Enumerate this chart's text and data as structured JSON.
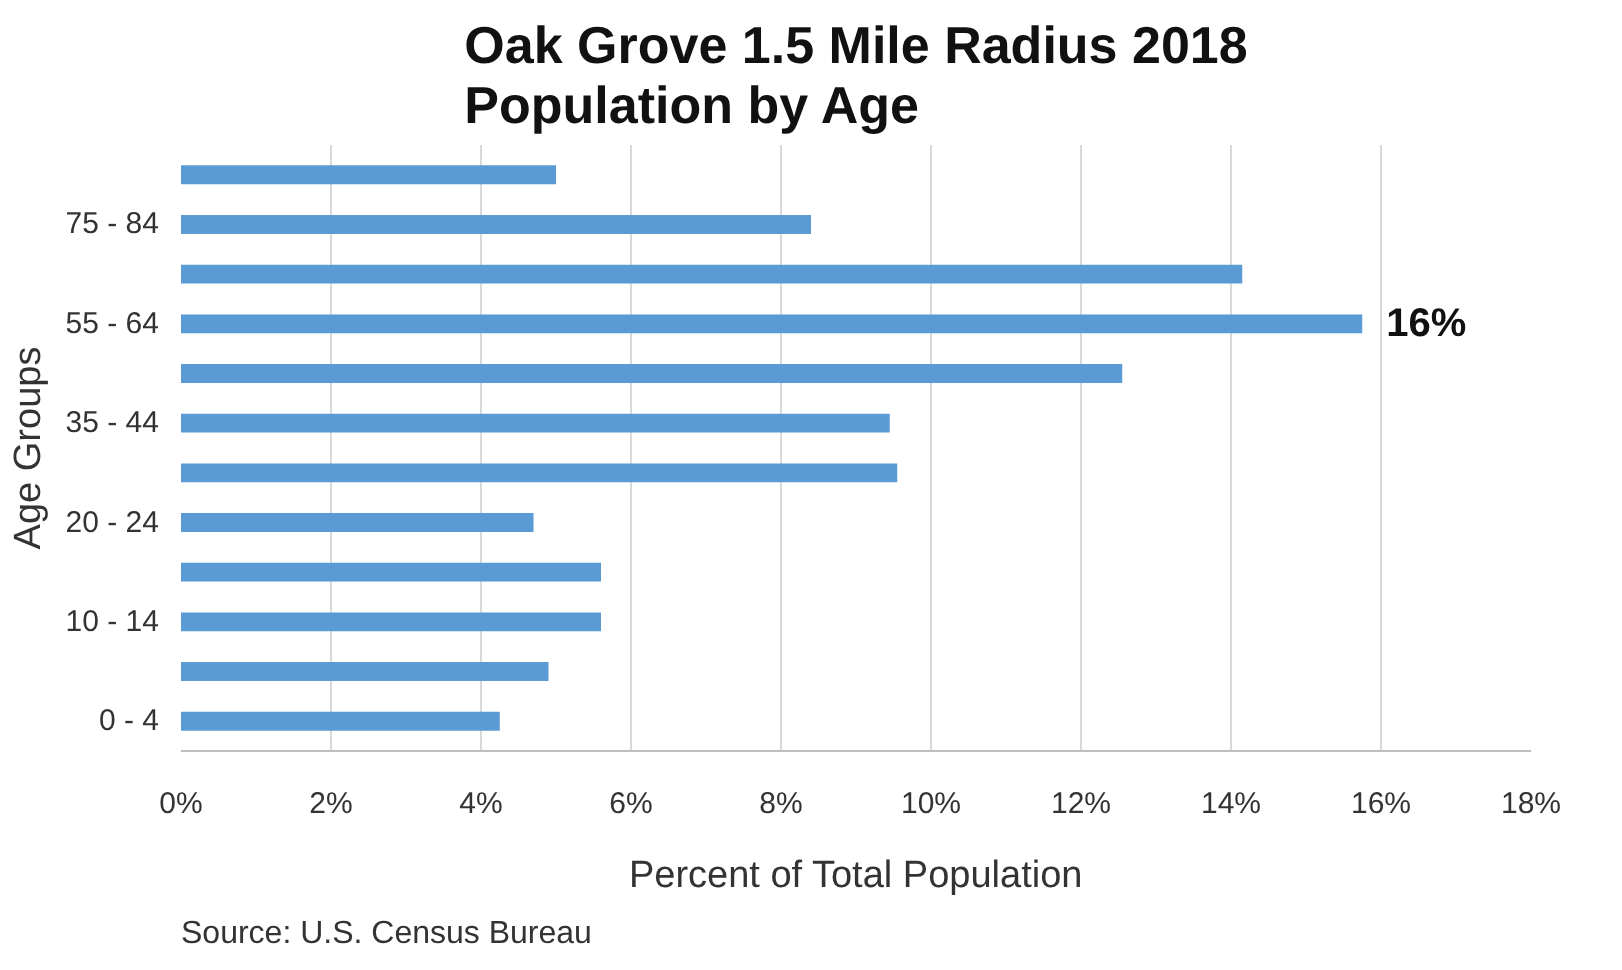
{
  "chart_data": {
    "type": "bar",
    "orientation": "horizontal",
    "title": "Oak Grove 1.5 Mile Radius 2018\nPopulation by Age",
    "xlabel": "Percent of Total Population",
    "ylabel": "Age Groups",
    "categories": [
      null,
      "75 - 84",
      null,
      "55 - 64",
      null,
      "35 - 44",
      null,
      "20 - 24",
      null,
      "10 - 14",
      null,
      "0 - 4"
    ],
    "values": [
      5.0,
      8.4,
      14.15,
      15.75,
      12.55,
      9.45,
      9.55,
      4.7,
      5.6,
      5.6,
      4.9,
      4.25
    ],
    "color": "#5b9bd5",
    "xlim": [
      0,
      18
    ],
    "xticks": [
      {
        "value": 0,
        "label": "0%"
      },
      {
        "value": 2,
        "label": "2%"
      },
      {
        "value": 4,
        "label": "4%"
      },
      {
        "value": 6,
        "label": "6%"
      },
      {
        "value": 8,
        "label": "8%"
      },
      {
        "value": 10,
        "label": "10%"
      },
      {
        "value": 12,
        "label": "12%"
      },
      {
        "value": 14,
        "label": "14%"
      },
      {
        "value": 16,
        "label": "16%"
      },
      {
        "value": 18,
        "label": "18%"
      }
    ],
    "grid": "x",
    "annotations": [
      {
        "text": "16%",
        "x": 15.75,
        "y": "55 - 64"
      },
      "Source: U.S. Census Bureau"
    ]
  }
}
